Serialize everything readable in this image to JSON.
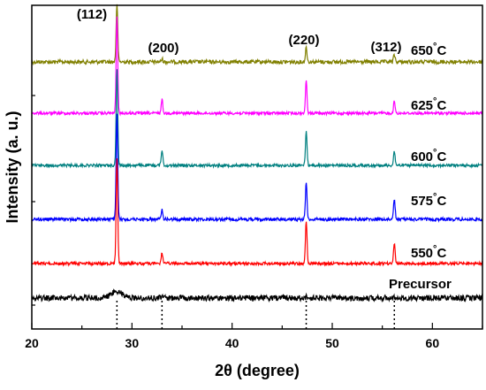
{
  "chart_data": {
    "type": "line",
    "xlabel": "2θ (degree)",
    "ylabel": "Intensity (a. u.)",
    "xlim": [
      20,
      65
    ],
    "xticks": [
      "20",
      "30",
      "40",
      "50",
      "60"
    ],
    "grid": false,
    "peak_labels": [
      {
        "text": "(112)",
        "x": 28.5
      },
      {
        "text": "(200)",
        "x": 33.0
      },
      {
        "text": "(220)",
        "x": 47.4
      },
      {
        "text": "(312)",
        "x": 56.2
      }
    ],
    "reference_lines_x": [
      28.5,
      33.0,
      47.4,
      56.2
    ],
    "series": [
      {
        "name": "650",
        "unit": "°C",
        "color": "#808000",
        "peaks": [
          [
            28.5,
            1.0
          ],
          [
            33.0,
            0.05
          ],
          [
            47.4,
            0.25
          ],
          [
            56.2,
            0.12
          ]
        ]
      },
      {
        "name": "625",
        "unit": "°C",
        "color": "#ff00ff",
        "peaks": [
          [
            28.5,
            1.0
          ],
          [
            33.0,
            0.14
          ],
          [
            47.4,
            0.33
          ],
          [
            56.2,
            0.12
          ]
        ]
      },
      {
        "name": "600",
        "unit": "°C",
        "color": "#008080",
        "peaks": [
          [
            28.5,
            1.0
          ],
          [
            33.0,
            0.16
          ],
          [
            47.4,
            0.35
          ],
          [
            56.2,
            0.14
          ]
        ]
      },
      {
        "name": "575",
        "unit": "°C",
        "color": "#0000ff",
        "peaks": [
          [
            28.5,
            1.0
          ],
          [
            33.0,
            0.1
          ],
          [
            47.4,
            0.35
          ],
          [
            56.2,
            0.18
          ]
        ]
      },
      {
        "name": "550",
        "unit": "°C",
        "color": "#ff0000",
        "peaks": [
          [
            28.5,
            1.0
          ],
          [
            33.0,
            0.1
          ],
          [
            47.4,
            0.4
          ],
          [
            56.2,
            0.18
          ]
        ]
      },
      {
        "name": "Precursor",
        "unit": "",
        "color": "#000000",
        "peaks": [
          [
            28.5,
            0.3
          ],
          [
            33.0,
            0.05
          ],
          [
            47.4,
            0.08
          ],
          [
            56.2,
            0.05
          ]
        ]
      }
    ]
  }
}
